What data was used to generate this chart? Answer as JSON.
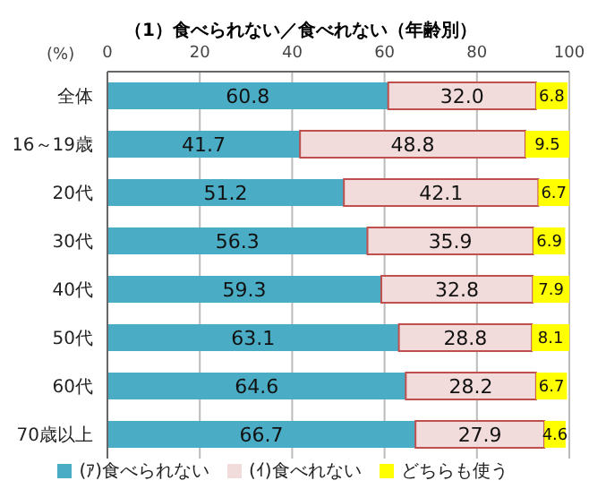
{
  "chart_data": {
    "type": "bar",
    "orientation": "horizontal",
    "stacked": true,
    "title": "（1）食べられない／食べれない（年齢別）",
    "xlabel": "(%)",
    "categories": [
      "全体",
      "16～19歳",
      "20代",
      "30代",
      "40代",
      "50代",
      "60代",
      "70歳以上"
    ],
    "series": [
      {
        "name": "(ｱ)食べられない",
        "color": "#4bacc6",
        "values": [
          60.8,
          41.7,
          51.2,
          56.3,
          59.3,
          63.1,
          64.6,
          66.7
        ],
        "value_labels": [
          "60.8",
          "41.7",
          "51.2",
          "56.3",
          "59.3",
          "63.1",
          "64.6",
          "66.7"
        ]
      },
      {
        "name": "(ｲ)食べれない",
        "color": "#f2dcdb",
        "values": [
          32.0,
          48.8,
          42.1,
          35.9,
          32.8,
          28.8,
          28.2,
          27.9
        ],
        "value_labels": [
          "32.0",
          "48.8",
          "42.1",
          "35.9",
          "32.8",
          "28.8",
          "28.2",
          "27.9"
        ]
      },
      {
        "name": "どちらも使う",
        "color": "#ffff00",
        "values": [
          6.8,
          9.5,
          6.7,
          6.9,
          7.9,
          8.1,
          6.7,
          4.6
        ],
        "value_labels": [
          "6.8",
          "9.5",
          "6.7",
          "6.9",
          "7.9",
          "8.1",
          "6.7",
          "4.6"
        ]
      }
    ],
    "xlim": [
      0,
      100
    ],
    "xticks": [
      0,
      20,
      40,
      60,
      80,
      100
    ],
    "grid": "x",
    "legend": "bottom"
  }
}
